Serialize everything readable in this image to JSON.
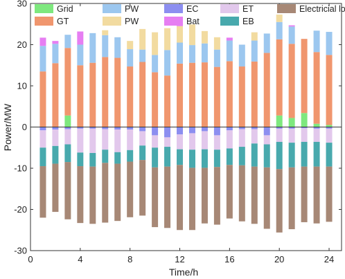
{
  "chart_data": {
    "type": "bar",
    "stacked": true,
    "xlabel": "Time/h",
    "ylabel": "Power/MW",
    "xlim": [
      0,
      25
    ],
    "ylim": [
      -30,
      30
    ],
    "xticks": [
      "0",
      "4",
      "8",
      "12",
      "16",
      "20",
      "24"
    ],
    "yticks": [
      "-30",
      "-20",
      "-10",
      "0",
      "10",
      "20",
      "30"
    ],
    "legend_position": "top",
    "x": [
      1,
      2,
      3,
      4,
      5,
      6,
      7,
      8,
      9,
      10,
      11,
      12,
      13,
      14,
      15,
      16,
      17,
      18,
      19,
      20,
      21,
      22,
      23,
      24
    ],
    "series": [
      {
        "name": "Grid",
        "color": "#7ee87e",
        "group": "positive",
        "values": [
          0,
          0,
          2.8,
          0,
          0,
          0,
          0,
          0,
          0,
          0,
          0,
          0,
          0,
          0,
          0,
          0,
          0,
          0,
          0,
          2.8,
          2.2,
          3.4,
          0.8,
          0.5
        ]
      },
      {
        "name": "GT",
        "color": "#f0966e",
        "group": "positive",
        "values": [
          13.5,
          15.5,
          16.4,
          15.0,
          15.6,
          17.0,
          16.8,
          14.7,
          15.8,
          13.3,
          12.5,
          15.4,
          15.6,
          15.7,
          14.6,
          16.0,
          14.7,
          15.9,
          18.0,
          18.5,
          18.0,
          18.0,
          17.4,
          17.0
        ]
      },
      {
        "name": "PW",
        "color": "#9cc7ef",
        "group": "positive",
        "values": [
          6.2,
          4.7,
          3.2,
          5.0,
          7.2,
          5.3,
          5.0,
          4.2,
          3.0,
          4.2,
          6.2,
          5.1,
          4.3,
          4.6,
          4.2,
          5.0,
          5.3,
          5.1,
          4.7,
          4.2,
          4.2,
          0,
          5.2,
          5.6
        ]
      },
      {
        "name": "PW",
        "color": "#f2dba0",
        "group": "positive",
        "values": [
          0,
          0,
          0,
          0,
          0,
          1.2,
          0,
          2.0,
          5.0,
          5.5,
          5.3,
          4.0,
          5.0,
          3.0,
          3.0,
          0,
          0,
          2.0,
          0,
          1.8,
          0,
          0,
          0,
          0
        ]
      },
      {
        "name": "Bat",
        "color": "#e67ef2",
        "group": "positive",
        "values": [
          2.0,
          0.7,
          0,
          3.2,
          0,
          0,
          0,
          0,
          0,
          0,
          0,
          1.2,
          0,
          0,
          0,
          0.7,
          0,
          0,
          0,
          0,
          0.3,
          0,
          0,
          0
        ]
      },
      {
        "name": "EC",
        "color": "#8c8ef0",
        "group": "negative",
        "values": [
          -0.8,
          -0.6,
          -0.5,
          -0.4,
          -0.4,
          -0.5,
          -0.6,
          -0.6,
          -1.0,
          -2.0,
          -2.5,
          -1.8,
          -1.5,
          -1.0,
          -2.0,
          -0.8,
          -0.5,
          -0.5,
          -2.0,
          -0.4,
          -0.4,
          -0.3,
          -0.4,
          -0.4
        ]
      },
      {
        "name": "ET",
        "color": "#e2c8ec",
        "group": "negative",
        "values": [
          -4.2,
          -4.0,
          -3.7,
          -5.8,
          -5.9,
          -5.0,
          -5.5,
          -5.0,
          -3.5,
          -3.0,
          -2.3,
          -3.6,
          -4.0,
          -4.4,
          -3.5,
          -4.4,
          -4.3,
          -3.5,
          -2.2,
          -3.2,
          -3.4,
          -3.3,
          -3.2,
          -3.4
        ]
      },
      {
        "name": "EB",
        "color": "#48a9ad",
        "group": "negative",
        "values": [
          -4.5,
          -4.3,
          -4.3,
          -3.3,
          -3.3,
          -3.2,
          -2.8,
          -2.8,
          -3.5,
          -4.8,
          -4.8,
          -3.8,
          -4.4,
          -4.5,
          -4.2,
          -4.0,
          -4.5,
          -5.6,
          -5.6,
          -6.6,
          -6.0,
          -6.0,
          -6.0,
          -5.8
        ]
      },
      {
        "name": "Electricial load",
        "color": "#a78876",
        "group": "negative",
        "values": [
          -12.5,
          -11.7,
          -13.9,
          -13.8,
          -13.9,
          -14.5,
          -13.9,
          -13.5,
          -13.5,
          -14.5,
          -14.9,
          -15.8,
          -15.1,
          -13.5,
          -14.0,
          -13.0,
          -13.6,
          -13.9,
          -14.9,
          -15.4,
          -15.0,
          -13.5,
          -13.8,
          -13.4
        ]
      }
    ]
  }
}
